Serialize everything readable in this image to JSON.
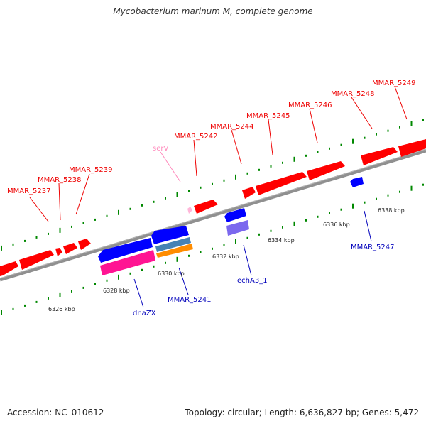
{
  "title": "Mycobacterium marinum M, complete genome",
  "footer": {
    "accession": "Accession: NC_010612",
    "summary": "Topology: circular; Length: 6,636,827 bp; Genes: 5,472"
  },
  "colors": {
    "backbone": "#8a8a8a",
    "forward_gene": "#ff0000",
    "reverse_gene": "#0000ff",
    "rna": "#ffb6d9",
    "pseudo_pink": "#ff1493",
    "pseudo_steel": "#4682b4",
    "pseudo_orange": "#ff8c00",
    "pseudo_slate": "#7b68ee",
    "forward_label": "#ee0000",
    "reverse_label": "#0000bb",
    "rna_label": "#ff88bb",
    "scale_tick": "#008800"
  },
  "scale_labels": [
    "6326 kbp",
    "6328 kbp",
    "6330 kbp",
    "6332 kbp",
    "6334 kbp",
    "6336 kbp",
    "6338 kbp"
  ],
  "forward_labels": [
    "MMAR_5237",
    "MMAR_5238",
    "MMAR_5239",
    "serV",
    "MMAR_5242",
    "MMAR_5244",
    "MMAR_5245",
    "MMAR_5246",
    "MMAR_5248",
    "MMAR_5249"
  ],
  "reverse_labels": [
    "dnaZX",
    "MMAR_5241",
    "echA3_1",
    "MMAR_5247"
  ]
}
